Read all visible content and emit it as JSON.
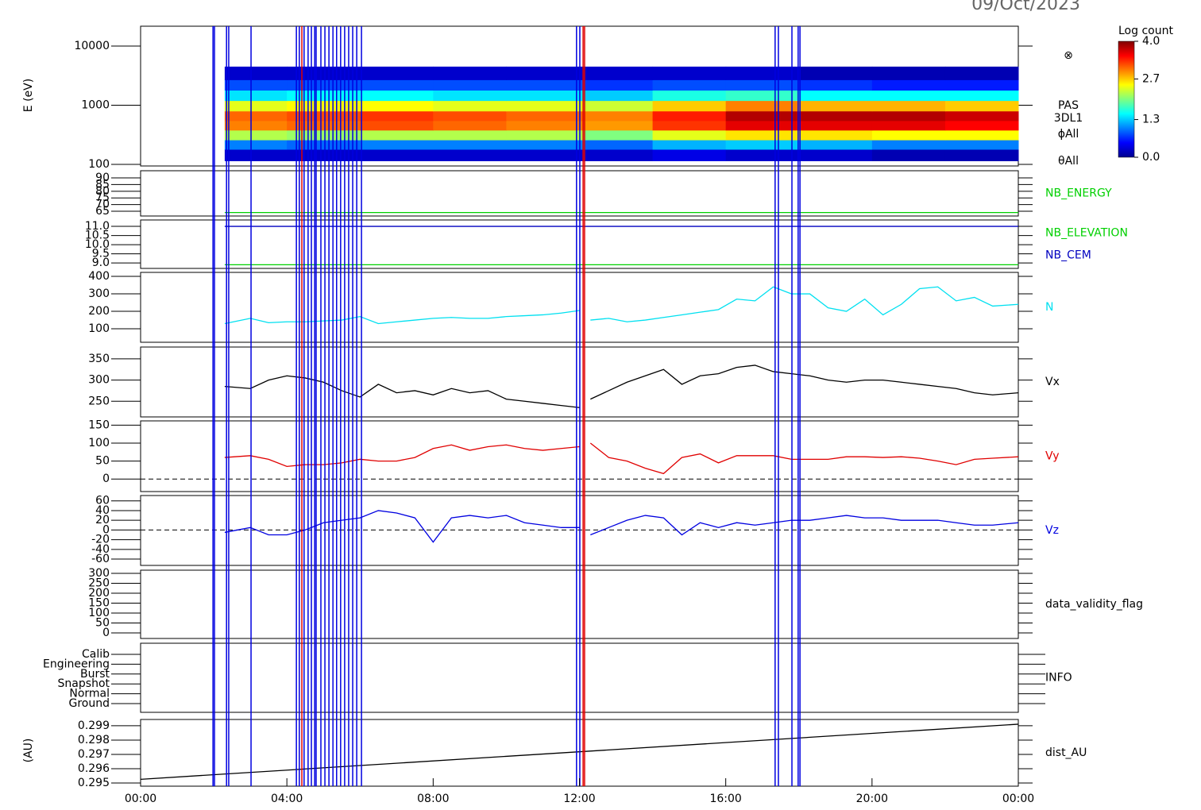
{
  "header": {
    "date": "09/Oct/2023"
  },
  "time_axis": {
    "xlim": [
      0,
      24
    ],
    "xticks": [
      {
        "value": 0,
        "label": "00:00"
      },
      {
        "value": 4,
        "label": "04:00"
      },
      {
        "value": 8,
        "label": "08:00"
      },
      {
        "value": 12,
        "label": "12:00"
      },
      {
        "value": 16,
        "label": "16:00"
      },
      {
        "value": 20,
        "label": "20:00"
      },
      {
        "value": 24,
        "label": "00:00"
      }
    ]
  },
  "event_lines": {
    "x": [
      1.98,
      2.02,
      2.35,
      2.41,
      3.02,
      4.26,
      4.34,
      4.41,
      4.47,
      4.58,
      4.67,
      4.76,
      4.8,
      4.93,
      5.04,
      5.15,
      5.26,
      5.36,
      5.47,
      5.58,
      5.69,
      5.8,
      5.91,
      6.04,
      11.92,
      12.01,
      12.1,
      12.14,
      17.35,
      17.44,
      17.81,
      17.98,
      18.03
    ],
    "colors": [
      "#0000e0",
      "#0000e0",
      "#0000e0",
      "#0000e0",
      "#0000e0",
      "#0000e0",
      "#0000e0",
      "#e00000",
      "#0000e0",
      "#0000e0",
      "#0000e0",
      "#0000e0",
      "#0000e0",
      "#0000e0",
      "#0000e0",
      "#0000e0",
      "#0000e0",
      "#0000e0",
      "#0000e0",
      "#0000e0",
      "#0000e0",
      "#0000e0",
      "#0000e0",
      "#0000e0",
      "#0000e0",
      "#0000e0",
      "#e00000",
      "#e00000",
      "#0000e0",
      "#0000e0",
      "#0000e0",
      "#0000e0",
      "#0000e0"
    ]
  },
  "chart_data": [
    {
      "type": "heatmap",
      "ylabel": "E (eV)",
      "log_y": true,
      "ylim": [
        94,
        21700
      ],
      "yticks": [
        100,
        1000,
        10000
      ],
      "x_bins": [
        2.3,
        4,
        6,
        8,
        10,
        12.1,
        14,
        16,
        18,
        20,
        22,
        24
      ],
      "y_bins": [
        115,
        180,
        260,
        380,
        550,
        800,
        1200,
        1800,
        2700,
        4500
      ],
      "values": [
        [
          0.3,
          0.3,
          0.3,
          0.3,
          0.3,
          0.3,
          0.4,
          0.3,
          0.3,
          0.2,
          0.2
        ],
        [
          1.0,
          0.9,
          1.0,
          1.0,
          1.0,
          0.9,
          1.2,
          1.3,
          1.2,
          1.0,
          1.0
        ],
        [
          2.2,
          2.1,
          2.2,
          2.2,
          2.2,
          2.0,
          2.4,
          2.6,
          2.6,
          2.5,
          2.5
        ],
        [
          3.0,
          3.1,
          3.2,
          3.1,
          3.0,
          2.9,
          3.3,
          3.6,
          3.6,
          3.6,
          3.5
        ],
        [
          3.1,
          3.2,
          3.3,
          3.2,
          3.1,
          3.0,
          3.4,
          3.8,
          3.8,
          3.8,
          3.7
        ],
        [
          2.4,
          2.5,
          2.5,
          2.4,
          2.4,
          2.3,
          2.7,
          3.0,
          2.8,
          2.8,
          2.7
        ],
        [
          1.4,
          1.5,
          1.5,
          1.4,
          1.4,
          1.3,
          1.6,
          1.7,
          1.5,
          1.5,
          1.5
        ],
        [
          0.8,
          0.8,
          0.8,
          0.8,
          0.8,
          0.7,
          0.8,
          0.8,
          0.7,
          0.6,
          0.6
        ],
        [
          0.3,
          0.3,
          0.3,
          0.3,
          0.3,
          0.3,
          0.3,
          0.3,
          0.2,
          0.2,
          0.2
        ]
      ],
      "colorscale": "jet",
      "colorbar": {
        "title": "Log count",
        "zlim": [
          0,
          4
        ],
        "zticks": [
          {
            "value": 0,
            "label": "0.0"
          },
          1.3,
          2.7,
          {
            "value": 4,
            "label": "4.0"
          }
        ]
      },
      "annotations": [
        "⊗",
        "PAS",
        "3DL1",
        "ϕAll",
        "θAll"
      ]
    },
    {
      "type": "line",
      "ylim": [
        61.4,
        95.4
      ],
      "yticks": [
        65,
        70,
        75,
        80,
        85,
        90
      ],
      "series": [
        {
          "name": "NB_ENERGY",
          "color": "#00d000",
          "x": [
            2.3,
            24
          ],
          "values": [
            64,
            64
          ]
        }
      ]
    },
    {
      "type": "line",
      "ylim": [
        8.7,
        11.35
      ],
      "yticks": [
        {
          "value": 9,
          "label": "9.0"
        },
        9.5,
        {
          "value": 10,
          "label": "10.0"
        },
        10.5,
        {
          "value": 11,
          "label": "11.0"
        }
      ],
      "series": [
        {
          "name": "NB_ELEVATION",
          "color": "#00d000",
          "x": [
            2.3,
            24
          ],
          "values": [
            8.9,
            8.9
          ]
        },
        {
          "name": "NB_CEM",
          "color": "#0000c0",
          "x": [
            2.3,
            24
          ],
          "values": [
            11,
            11
          ]
        }
      ]
    },
    {
      "type": "line",
      "ylim": [
        23,
        423
      ],
      "yticks": [
        100,
        200,
        300,
        400
      ],
      "series": [
        {
          "name": "N",
          "color": "#00e0f0",
          "x": [
            2.3,
            3,
            3.5,
            4,
            4.5,
            5,
            5.5,
            6,
            6.5,
            7,
            7.5,
            8,
            8.5,
            9,
            9.5,
            10,
            10.5,
            11,
            11.5,
            12,
            12.1,
            12.3,
            12.8,
            13.3,
            13.8,
            14.3,
            14.8,
            15.3,
            15.8,
            16.3,
            16.8,
            17.3,
            17.8,
            18.3,
            18.8,
            19.3,
            19.8,
            20.3,
            20.8,
            21.3,
            21.8,
            22.3,
            22.8,
            23.3,
            24
          ],
          "values": [
            130,
            160,
            135,
            140,
            140,
            145,
            150,
            170,
            130,
            140,
            150,
            160,
            165,
            160,
            160,
            170,
            175,
            180,
            190,
            205,
            null,
            150,
            160,
            140,
            150,
            165,
            180,
            195,
            210,
            270,
            260,
            340,
            300,
            300,
            220,
            200,
            270,
            180,
            240,
            330,
            340,
            260,
            280,
            230,
            240
          ]
        }
      ]
    },
    {
      "type": "line",
      "ylim": [
        213,
        378
      ],
      "yticks": [
        250,
        300,
        350
      ],
      "series": [
        {
          "name": "Vx",
          "color": "#000000",
          "x": [
            2.3,
            3,
            3.5,
            4,
            4.5,
            5,
            5.5,
            6,
            6.5,
            7,
            7.5,
            8,
            8.5,
            9,
            9.5,
            10,
            10.5,
            11,
            11.5,
            12,
            12.1,
            12.3,
            12.8,
            13.3,
            13.8,
            14.3,
            14.8,
            15.3,
            15.8,
            16.3,
            16.8,
            17.3,
            17.8,
            18.3,
            18.8,
            19.3,
            19.8,
            20.3,
            20.8,
            21.3,
            21.8,
            22.3,
            22.8,
            23.3,
            24
          ],
          "values": [
            285,
            280,
            300,
            310,
            305,
            295,
            275,
            260,
            290,
            270,
            275,
            265,
            280,
            270,
            275,
            255,
            250,
            245,
            240,
            235,
            null,
            255,
            275,
            295,
            310,
            325,
            290,
            310,
            315,
            330,
            335,
            320,
            315,
            310,
            300,
            295,
            300,
            300,
            295,
            290,
            285,
            280,
            270,
            265,
            270
          ]
        }
      ]
    },
    {
      "type": "line",
      "ylim": [
        -35,
        162
      ],
      "yticks": [
        0,
        50,
        100,
        150
      ],
      "zero_line": true,
      "series": [
        {
          "name": "Vy",
          "color": "#e00000",
          "x": [
            2.3,
            3,
            3.5,
            4,
            4.5,
            5,
            5.5,
            6,
            6.5,
            7,
            7.5,
            8,
            8.5,
            9,
            9.5,
            10,
            10.5,
            11,
            11.5,
            12,
            12.1,
            12.3,
            12.8,
            13.3,
            13.8,
            14.3,
            14.8,
            15.3,
            15.8,
            16.3,
            16.8,
            17.3,
            17.8,
            18.3,
            18.8,
            19.3,
            19.8,
            20.3,
            20.8,
            21.3,
            21.8,
            22.3,
            22.8,
            23.3,
            24
          ],
          "values": [
            60,
            65,
            55,
            35,
            40,
            40,
            45,
            55,
            50,
            50,
            60,
            85,
            95,
            80,
            90,
            95,
            85,
            80,
            85,
            90,
            null,
            100,
            60,
            50,
            30,
            15,
            60,
            70,
            45,
            65,
            65,
            65,
            55,
            55,
            55,
            62,
            62,
            60,
            62,
            58,
            50,
            40,
            55,
            58,
            62
          ]
        }
      ]
    },
    {
      "type": "line",
      "ylim": [
        -73,
        71
      ],
      "yticks": [
        -60,
        -40,
        -20,
        0,
        20,
        40,
        60
      ],
      "zero_line": true,
      "series": [
        {
          "name": "Vz",
          "color": "#0000e0",
          "x": [
            2.3,
            3,
            3.5,
            4,
            4.5,
            5,
            5.5,
            6,
            6.5,
            7,
            7.5,
            8,
            8.5,
            9,
            9.5,
            10,
            10.5,
            11,
            11.5,
            12,
            12.1,
            12.3,
            12.8,
            13.3,
            13.8,
            14.3,
            14.8,
            15.3,
            15.8,
            16.3,
            16.8,
            17.3,
            17.8,
            18.3,
            18.8,
            19.3,
            19.8,
            20.3,
            20.8,
            21.3,
            21.8,
            22.3,
            22.8,
            23.3,
            24
          ],
          "values": [
            -5,
            5,
            -10,
            -10,
            0,
            15,
            20,
            25,
            40,
            35,
            25,
            -25,
            25,
            30,
            25,
            30,
            15,
            10,
            5,
            5,
            null,
            -10,
            5,
            20,
            30,
            25,
            -10,
            15,
            5,
            15,
            10,
            15,
            20,
            20,
            25,
            30,
            25,
            25,
            20,
            20,
            20,
            15,
            10,
            10,
            15
          ]
        }
      ]
    },
    {
      "type": "line",
      "ylim": [
        -28,
        316
      ],
      "yticks": [
        0,
        50,
        100,
        150,
        200,
        250,
        300
      ],
      "label": "data_validity_flag",
      "series": []
    },
    {
      "type": "category",
      "label": "INFO",
      "categories": [
        "Calib",
        "Engineering",
        "Burst",
        "Snapshot",
        "Normal",
        "Ground"
      ]
    },
    {
      "type": "line",
      "ylabel": "(AU)",
      "ylim": [
        0.29478,
        0.29944
      ],
      "yticks": [
        0.295,
        0.296,
        0.297,
        0.298,
        0.299
      ],
      "series": [
        {
          "name": "dist_AU",
          "color": "#000000",
          "x": [
            0,
            24
          ],
          "values": [
            0.29526,
            0.29911
          ]
        }
      ]
    }
  ]
}
